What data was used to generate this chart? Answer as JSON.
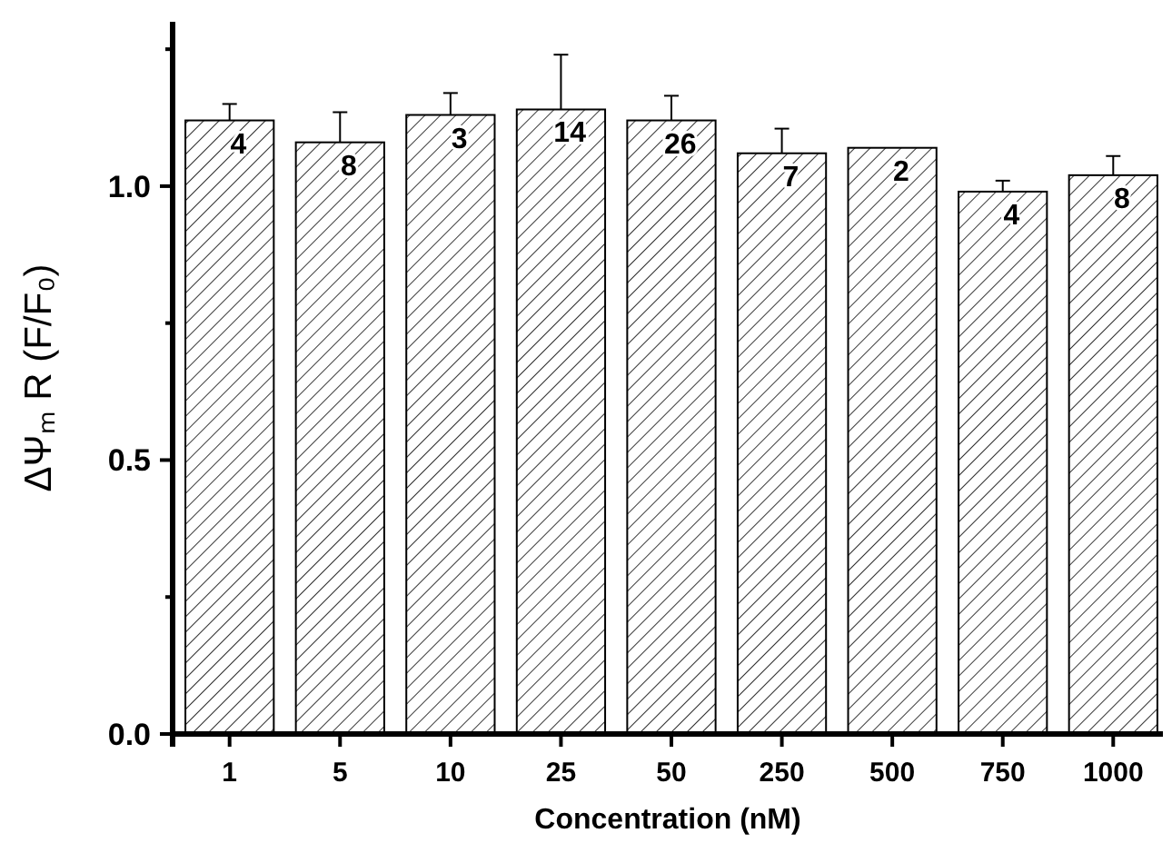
{
  "chart_data": {
    "type": "bar",
    "xlabel": "Concentration (nM)",
    "ylabel": "ΔΨₘ R (F/F₀)",
    "categories": [
      "1",
      "5",
      "10",
      "25",
      "50",
      "250",
      "500",
      "750",
      "1000"
    ],
    "values": [
      1.12,
      1.08,
      1.13,
      1.14,
      1.12,
      1.06,
      1.07,
      0.99,
      1.02
    ],
    "errors": [
      0.03,
      0.055,
      0.04,
      0.1,
      0.045,
      0.045,
      null,
      0.02,
      0.035
    ],
    "color": "#ffffff",
    "ylim": [
      0,
      1.3
    ],
    "yticks": [
      {
        "value": 0,
        "label": "0.0"
      },
      {
        "value": 0.25,
        "label": null
      },
      {
        "value": 0.5,
        "label": "0.5"
      },
      {
        "value": 0.75,
        "label": null
      },
      {
        "value": 1,
        "label": "1.0"
      },
      {
        "value": 1.25,
        "label": null
      }
    ],
    "annotations": [
      {
        "text": "4",
        "x": "1",
        "y": 1.12
      },
      {
        "text": "8",
        "x": "5",
        "y": 1.08
      },
      {
        "text": "3",
        "x": "10",
        "y": 1.13
      },
      {
        "text": "14",
        "x": "25",
        "y": 1.14
      },
      {
        "text": "26",
        "x": "50",
        "y": 1.12
      },
      {
        "text": "7",
        "x": "250",
        "y": 1.06
      },
      {
        "text": "2",
        "x": "500",
        "y": 1.07
      },
      {
        "text": "4",
        "x": "750",
        "y": 0.99
      },
      {
        "text": "8",
        "x": "1000",
        "y": 1.02
      }
    ]
  }
}
